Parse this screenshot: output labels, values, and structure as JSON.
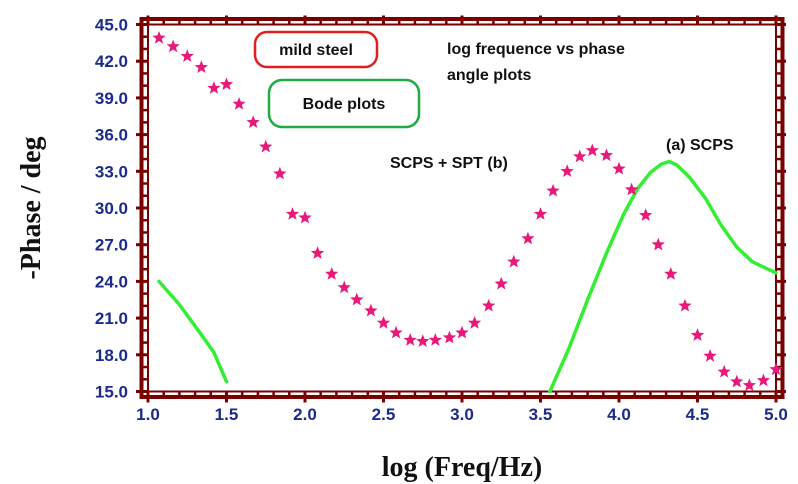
{
  "chart_data": {
    "type": "line",
    "xlabel": "log (Freq/Hz)",
    "ylabel": "-Phase / deg",
    "xlim": [
      1.0,
      5.0
    ],
    "ylim": [
      15.0,
      45.0
    ],
    "x_ticks": [
      "1.0",
      "1.5",
      "2.0",
      "2.5",
      "3.0",
      "3.5",
      "4.0",
      "4.5",
      "5.0"
    ],
    "y_ticks": [
      "15.0",
      "18.0",
      "21.0",
      "24.0",
      "27.0",
      "30.0",
      "33.0",
      "36.0",
      "39.0",
      "42.0",
      "45.0"
    ],
    "grid": false,
    "colors": {
      "frame": "#7a0000",
      "tick_label": "#1c2a8c",
      "star_series": "#e8197a",
      "line_series": "#33ee33",
      "label_box_red": "#e02020",
      "label_box_green": "#22aa44"
    },
    "series": [
      {
        "name": "SCPS + SPT (b)",
        "marker": "star",
        "points": [
          [
            1.07,
            43.9
          ],
          [
            1.16,
            43.2
          ],
          [
            1.25,
            42.4
          ],
          [
            1.34,
            41.5
          ],
          [
            1.42,
            39.8
          ],
          [
            1.5,
            40.1
          ],
          [
            1.58,
            38.5
          ],
          [
            1.67,
            37.0
          ],
          [
            1.75,
            35.0
          ],
          [
            1.84,
            32.8
          ],
          [
            1.92,
            29.5
          ],
          [
            2.0,
            29.2
          ],
          [
            2.08,
            26.3
          ],
          [
            2.17,
            24.6
          ],
          [
            2.25,
            23.5
          ],
          [
            2.33,
            22.5
          ],
          [
            2.42,
            21.6
          ],
          [
            2.5,
            20.6
          ],
          [
            2.58,
            19.8
          ],
          [
            2.67,
            19.2
          ],
          [
            2.75,
            19.1
          ],
          [
            2.83,
            19.2
          ],
          [
            2.92,
            19.4
          ],
          [
            3.0,
            19.8
          ],
          [
            3.08,
            20.6
          ],
          [
            3.17,
            22.0
          ],
          [
            3.25,
            23.8
          ],
          [
            3.33,
            25.6
          ],
          [
            3.42,
            27.5
          ],
          [
            3.5,
            29.5
          ],
          [
            3.58,
            31.4
          ],
          [
            3.67,
            33.0
          ],
          [
            3.75,
            34.2
          ],
          [
            3.83,
            34.7
          ],
          [
            3.92,
            34.3
          ],
          [
            4.0,
            33.2
          ],
          [
            4.08,
            31.5
          ],
          [
            4.17,
            29.4
          ],
          [
            4.25,
            27.0
          ],
          [
            4.33,
            24.6
          ],
          [
            4.42,
            22.0
          ],
          [
            4.5,
            19.6
          ],
          [
            4.58,
            17.9
          ],
          [
            4.67,
            16.6
          ],
          [
            4.75,
            15.8
          ],
          [
            4.83,
            15.5
          ],
          [
            4.92,
            15.9
          ],
          [
            5.0,
            16.8
          ]
        ]
      },
      {
        "name": "(a) SCPS",
        "marker": "line",
        "segments": [
          [
            [
              1.07,
              24.0
            ],
            [
              1.2,
              22.1
            ],
            [
              1.32,
              20.0
            ],
            [
              1.42,
              18.2
            ],
            [
              1.5,
              15.8
            ]
          ],
          [
            [
              3.56,
              15.0
            ],
            [
              3.68,
              18.5
            ],
            [
              3.8,
              22.5
            ],
            [
              3.92,
              26.3
            ],
            [
              4.03,
              29.5
            ],
            [
              4.12,
              31.6
            ],
            [
              4.2,
              32.9
            ],
            [
              4.27,
              33.6
            ],
            [
              4.32,
              33.8
            ],
            [
              4.37,
              33.5
            ],
            [
              4.45,
              32.5
            ],
            [
              4.55,
              30.8
            ],
            [
              4.65,
              28.6
            ],
            [
              4.75,
              26.8
            ],
            [
              4.85,
              25.6
            ],
            [
              4.95,
              25.0
            ],
            [
              5.0,
              24.7
            ]
          ]
        ]
      }
    ],
    "annotations": {
      "mild_steel": "mild steel",
      "bode_plots": "Bode plots",
      "plot_title": "log frequence vs phase",
      "plot_title_2": "angle plots",
      "label_b": "SCPS + SPT (b)",
      "label_a": "(a) SCPS"
    }
  }
}
